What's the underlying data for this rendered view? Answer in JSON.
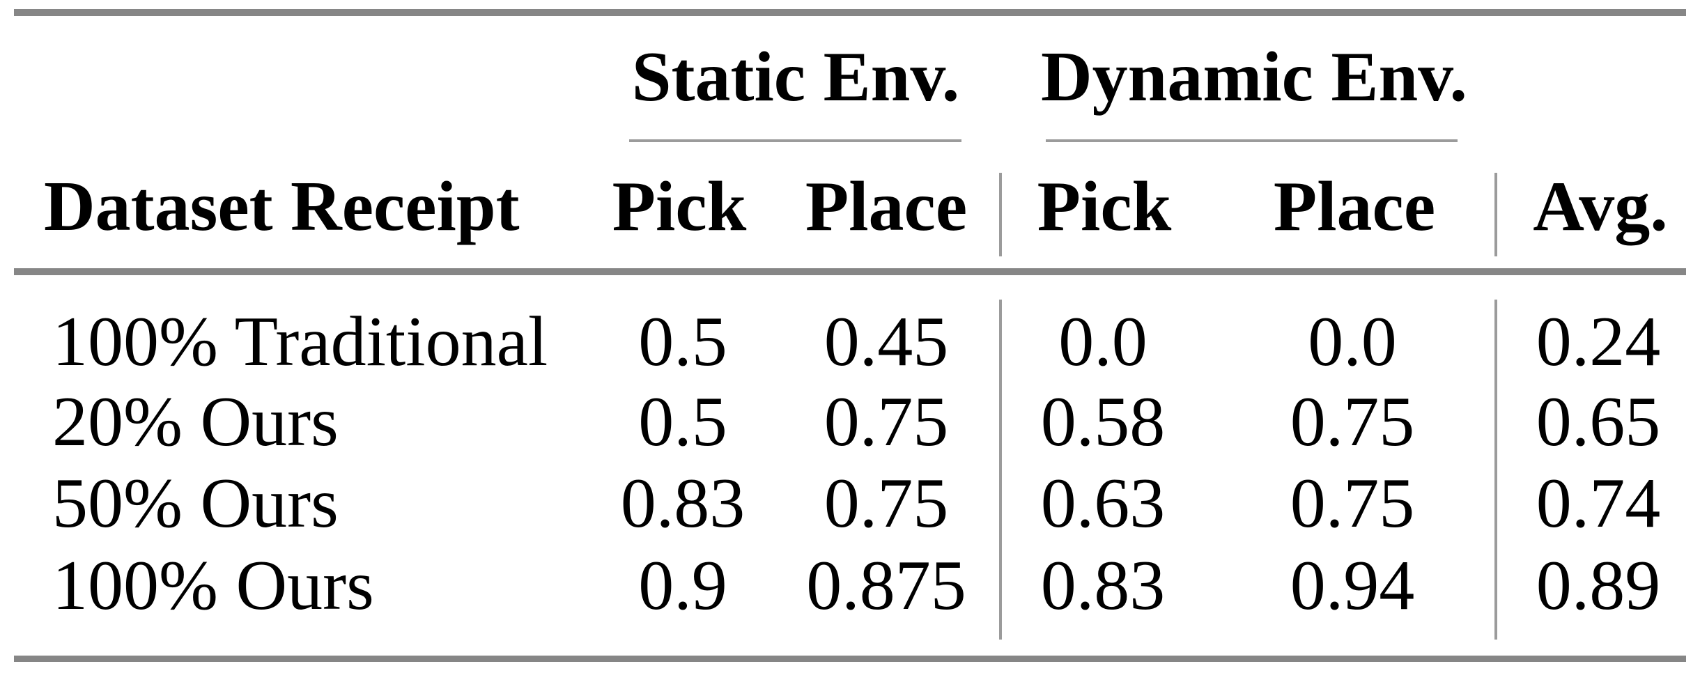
{
  "colors": {
    "rule_thick": "#868686",
    "rule_thin": "#9b9b9b",
    "text": "#000000",
    "background": "#ffffff"
  },
  "table": {
    "group_headers": {
      "static": "Static Env.",
      "dynamic": "Dynamic Env."
    },
    "column_headers": {
      "row_label": "Dataset Receipt",
      "static_pick": "Pick",
      "static_place": "Place",
      "dynamic_pick": "Pick",
      "dynamic_place": "Place",
      "avg": "Avg."
    },
    "rows": [
      {
        "label": "100% Traditional",
        "static_pick": "0.5",
        "static_place": "0.45",
        "dynamic_pick": "0.0",
        "dynamic_place": "0.0",
        "avg": "0.24"
      },
      {
        "label": "20% Ours",
        "static_pick": "0.5",
        "static_place": "0.75",
        "dynamic_pick": "0.58",
        "dynamic_place": "0.75",
        "avg": "0.65"
      },
      {
        "label": "50% Ours",
        "static_pick": "0.83",
        "static_place": "0.75",
        "dynamic_pick": "0.63",
        "dynamic_place": "0.75",
        "avg": "0.74"
      },
      {
        "label": "100% Ours",
        "static_pick": "0.9",
        "static_place": "0.875",
        "dynamic_pick": "0.83",
        "dynamic_place": "0.94",
        "avg": "0.89"
      }
    ]
  },
  "chart_data": {
    "type": "table",
    "columns": [
      "Dataset Receipt",
      "Static Env. Pick",
      "Static Env. Place",
      "Dynamic Env. Pick",
      "Dynamic Env. Place",
      "Avg."
    ],
    "rows": [
      [
        "100% Traditional",
        0.5,
        0.45,
        0.0,
        0.0,
        0.24
      ],
      [
        "20% Ours",
        0.5,
        0.75,
        0.58,
        0.75,
        0.65
      ],
      [
        "50% Ours",
        0.83,
        0.75,
        0.63,
        0.75,
        0.74
      ],
      [
        "100% Ours",
        0.9,
        0.875,
        0.83,
        0.94,
        0.89
      ]
    ]
  }
}
